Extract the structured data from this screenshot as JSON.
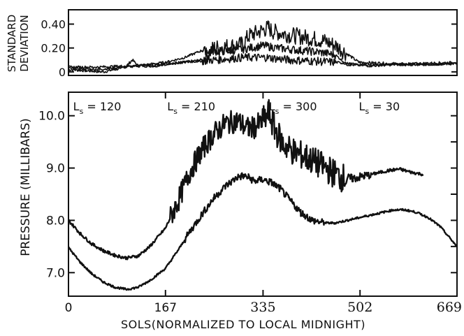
{
  "chart_data": [
    {
      "type": "line",
      "ylabel_lines": [
        "STANDARD",
        "DEVIATION"
      ],
      "yticks": [
        {
          "value": 0.4,
          "label": "0.40"
        },
        {
          "value": 0.2,
          "label": "0.20"
        },
        {
          "value": 0.0,
          "label": "0"
        }
      ],
      "xlim": [
        0,
        669
      ],
      "ylim": [
        -0.03,
        0.52
      ],
      "grid": false,
      "series": [
        {
          "x": [
            0,
            30,
            60,
            90,
            100,
            110,
            120,
            150,
            167,
            200,
            230,
            250,
            300,
            310,
            330,
            340,
            345,
            350,
            380,
            420,
            440,
            460,
            500,
            600,
            669
          ],
          "values": [
            0.02,
            0.01,
            0.0,
            0.03,
            0.05,
            0.1,
            0.05,
            0.05,
            0.07,
            0.08,
            0.1,
            0.2,
            0.23,
            0.3,
            0.34,
            0.36,
            0.37,
            0.34,
            0.31,
            0.28,
            0.26,
            0.22,
            0.08,
            0.06,
            0.07
          ]
        },
        {
          "x": [
            0,
            50,
            100,
            167,
            200,
            230,
            260,
            300,
            335,
            360,
            400,
            440,
            460,
            480,
            520,
            600,
            669
          ],
          "values": [
            0.03,
            0.02,
            0.04,
            0.08,
            0.12,
            0.18,
            0.17,
            0.19,
            0.22,
            0.2,
            0.18,
            0.16,
            0.14,
            0.06,
            0.05,
            0.07,
            0.08
          ]
        },
        {
          "x": [
            0,
            50,
            100,
            167,
            200,
            250,
            300,
            340,
            380,
            420,
            460,
            500,
            600,
            669
          ],
          "values": [
            0.04,
            0.04,
            0.05,
            0.06,
            0.08,
            0.1,
            0.12,
            0.12,
            0.1,
            0.09,
            0.08,
            0.06,
            0.06,
            0.07
          ]
        }
      ]
    },
    {
      "type": "line",
      "ylabel": "PRESSURE (MILLIBARS)",
      "xlabel": "SOLS(NORMALIZED TO LOCAL MIDNIGHT)",
      "xticks": [
        {
          "value": 0,
          "label": "0"
        },
        {
          "value": 167,
          "label": "167"
        },
        {
          "value": 335,
          "label": "335"
        },
        {
          "value": 502,
          "label": "502"
        },
        {
          "value": 669,
          "label": "669"
        }
      ],
      "yticks": [
        {
          "value": 10.0,
          "label": "10.0"
        },
        {
          "value": 9.0,
          "label": "9.0"
        },
        {
          "value": 8.0,
          "label": "8.0"
        },
        {
          "value": 7.0,
          "label": "7.0"
        }
      ],
      "xlim": [
        0,
        669
      ],
      "ylim": [
        6.55,
        10.45
      ],
      "grid": false,
      "annotations": [
        {
          "text": "L",
          "sub": "s",
          "rest": " = 120",
          "x": 8
        },
        {
          "text": "L",
          "sub": "s",
          "rest": " = 210",
          "x": 170
        },
        {
          "text": "L",
          "sub": "s",
          "rest": " = 300",
          "x": 345
        },
        {
          "text": "L",
          "sub": "s",
          "rest": " = 30",
          "x": 500
        }
      ],
      "series": [
        {
          "x": [
            0,
            20,
            40,
            60,
            80,
            100,
            120,
            140,
            167,
            190,
            210,
            230,
            250,
            270,
            290,
            310,
            320,
            335,
            345,
            355,
            370,
            390,
            410,
            430,
            450,
            470,
            490,
            510,
            530,
            550,
            570,
            590,
            610
          ],
          "values": [
            8.0,
            7.75,
            7.55,
            7.42,
            7.33,
            7.28,
            7.32,
            7.5,
            7.85,
            8.4,
            8.95,
            9.35,
            9.65,
            9.85,
            9.9,
            9.75,
            9.78,
            9.9,
            10.05,
            9.75,
            9.45,
            9.3,
            9.2,
            9.08,
            8.95,
            8.82,
            8.8,
            8.85,
            8.9,
            8.95,
            8.98,
            8.92,
            8.88
          ]
        },
        {
          "x": [
            0,
            20,
            40,
            60,
            80,
            100,
            120,
            140,
            167,
            190,
            210,
            230,
            250,
            270,
            290,
            300,
            310,
            320,
            335,
            350,
            365,
            380,
            400,
            420,
            440,
            460,
            480,
            500,
            520,
            540,
            560,
            580,
            600,
            620,
            640,
            669
          ],
          "values": [
            7.48,
            7.2,
            6.98,
            6.82,
            6.72,
            6.68,
            6.72,
            6.85,
            7.08,
            7.45,
            7.8,
            8.12,
            8.42,
            8.65,
            8.82,
            8.85,
            8.82,
            8.75,
            8.78,
            8.72,
            8.6,
            8.4,
            8.15,
            8.0,
            7.95,
            7.95,
            8.0,
            8.05,
            8.1,
            8.15,
            8.2,
            8.2,
            8.15,
            8.05,
            7.88,
            7.5
          ]
        }
      ]
    }
  ]
}
